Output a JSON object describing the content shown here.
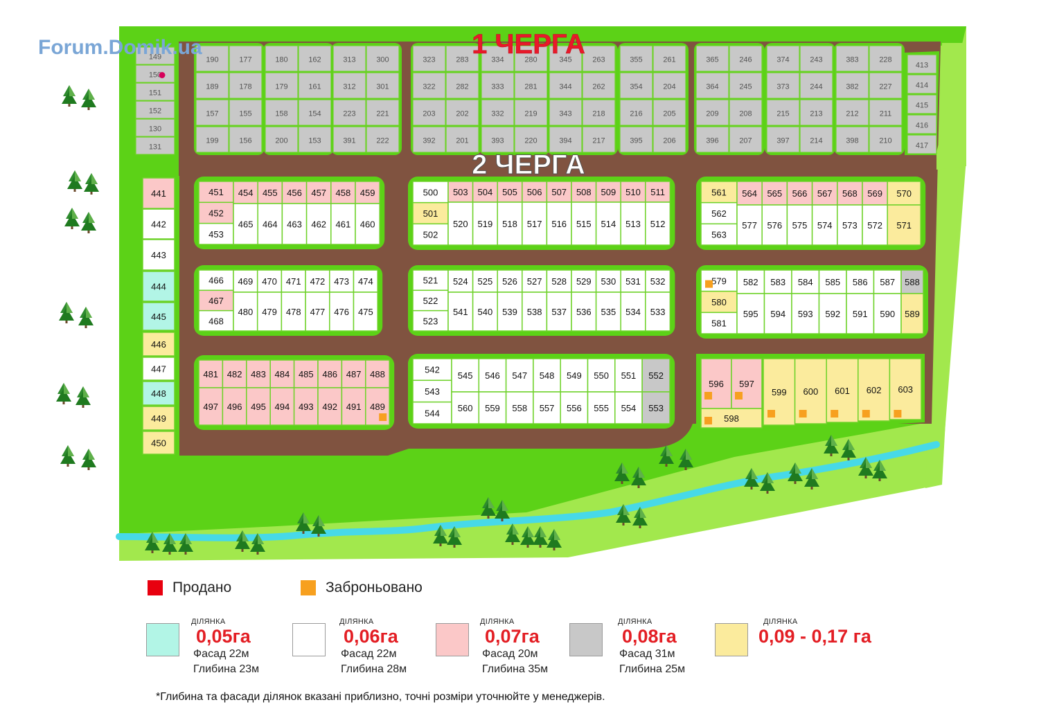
{
  "watermark": "Forum.Domik.ua",
  "phase_labels": {
    "first": "1 ЧЕРГА",
    "second": "2 ЧЕРГА"
  },
  "colors": {
    "grass": "#a2e84d",
    "grass_dark": "#5cd217",
    "road": "#805340",
    "sold": "#e8000f",
    "reserved": "#f7a01f",
    "size_005": "#b2f5e6",
    "size_006": "#ffffff",
    "size_007": "#fbc8c8",
    "size_008": "#c8c8c8",
    "size_009": "#fbeb9d",
    "river": "#47d9e8"
  },
  "legend": {
    "sold": "Продано",
    "reserved": "Заброньовано",
    "sizes": [
      {
        "key": "size_005",
        "caption": "ДІЛЯНКА",
        "area": "0,05га",
        "facade": "Фасад 22м",
        "depth": "Глибина 23м"
      },
      {
        "key": "size_006",
        "caption": "ДІЛЯНКА",
        "area": "0,06га",
        "facade": "Фасад 22м",
        "depth": "Глибина 28м"
      },
      {
        "key": "size_007",
        "caption": "ДІЛЯНКА",
        "area": "0,07га",
        "facade": "Фасад 20м",
        "depth": "Глибина 35м"
      },
      {
        "key": "size_008",
        "caption": "ДІЛЯНКА",
        "area": "0,08га",
        "facade": "Фасад 31м",
        "depth": "Глибина 25м"
      },
      {
        "key": "size_009",
        "caption": "ДІЛЯНКА",
        "area": "0,09 - 0,17 га",
        "facade": "",
        "depth": ""
      }
    ]
  },
  "footnote": "*Глибина та фасади ділянок вказані приблизно, точні розміри уточнюйте у менеджерів.",
  "lots": {
    "phase1": [
      [
        {
          "n": "149",
          "c": "size_008"
        },
        {
          "n": "150",
          "c": "size_008",
          "sold": true
        },
        {
          "n": "151",
          "c": "size_008"
        },
        {
          "n": "152",
          "c": "size_008"
        },
        {
          "n": "130",
          "c": "size_008"
        },
        {
          "n": "131",
          "c": "size_008"
        }
      ],
      [
        [
          "190",
          "177"
        ],
        [
          "189",
          "178"
        ],
        [
          "157",
          "155"
        ],
        [
          "199",
          "156"
        ]
      ],
      [
        [
          "180",
          "162"
        ],
        [
          "179",
          "161"
        ],
        [
          "158",
          "154"
        ],
        [
          "200",
          "153"
        ]
      ],
      [
        [
          "313",
          "300"
        ],
        [
          "312",
          "301"
        ],
        [
          "223",
          "221"
        ],
        [
          "391",
          "222"
        ]
      ],
      [
        [
          "323",
          "283"
        ],
        [
          "322",
          "282"
        ],
        [
          "203",
          "202"
        ],
        [
          "392",
          "201"
        ]
      ],
      [
        [
          "334",
          "280"
        ],
        [
          "333",
          "281"
        ],
        [
          "332",
          "219"
        ],
        [
          "393",
          "220"
        ]
      ],
      [
        [
          "345",
          "263"
        ],
        [
          "344",
          "262"
        ],
        [
          "343",
          "218"
        ],
        [
          "394",
          "217"
        ]
      ],
      [
        [
          "355",
          "261"
        ],
        [
          "354",
          "204"
        ],
        [
          "216",
          "205"
        ],
        [
          "395",
          "206"
        ]
      ],
      [
        [
          "365",
          "246"
        ],
        [
          "364",
          "245"
        ],
        [
          "209",
          "208"
        ],
        [
          "396",
          "207"
        ]
      ],
      [
        [
          "374",
          "243"
        ],
        [
          "373",
          "244"
        ],
        [
          "215",
          "213"
        ],
        [
          "397",
          "214"
        ]
      ],
      [
        [
          "383",
          "228"
        ],
        [
          "382",
          "227"
        ],
        [
          "212",
          "211"
        ],
        [
          "398",
          "210"
        ]
      ],
      [
        "413",
        "414",
        "415",
        "416",
        "417"
      ]
    ],
    "west_column": [
      {
        "n": "441",
        "c": "size_007"
      },
      {
        "n": "442",
        "c": "size_006"
      },
      {
        "n": "443",
        "c": "size_006"
      },
      {
        "n": "444",
        "c": "size_005"
      },
      {
        "n": "445",
        "c": "size_005"
      },
      {
        "n": "446",
        "c": "size_009"
      },
      {
        "n": "447",
        "c": "size_006"
      },
      {
        "n": "448",
        "c": "size_005"
      },
      {
        "n": "449",
        "c": "size_009"
      },
      {
        "n": "450",
        "c": "size_009"
      }
    ],
    "blockA": {
      "left": [
        {
          "n": "451",
          "c": "size_007"
        },
        {
          "n": "452",
          "c": "size_007"
        },
        {
          "n": "453",
          "c": "size_006"
        }
      ],
      "top": [
        "454",
        "455",
        "456",
        "457",
        "458",
        "459"
      ],
      "top_c": "size_007",
      "bottom": [
        "465",
        "464",
        "463",
        "462",
        "461",
        "460"
      ],
      "bottom_c": "size_006"
    },
    "blockB": {
      "left": [
        {
          "n": "500",
          "c": "size_006"
        },
        {
          "n": "501",
          "c": "size_009"
        },
        {
          "n": "502",
          "c": "size_006"
        }
      ],
      "top": [
        "503",
        "504",
        "505",
        "506",
        "507",
        "508",
        "509",
        "510",
        "511"
      ],
      "top_c": "size_007",
      "bottom": [
        "520",
        "519",
        "518",
        "517",
        "516",
        "515",
        "514",
        "513",
        "512"
      ],
      "bottom_c": "size_006"
    },
    "blockC": {
      "left": [
        {
          "n": "561",
          "c": "size_009"
        },
        {
          "n": "562",
          "c": "size_006"
        },
        {
          "n": "563",
          "c": "size_006"
        }
      ],
      "top": [
        "564",
        "565",
        "566",
        "567",
        "568",
        "569"
      ],
      "top_c": "size_007",
      "bottom": [
        "577",
        "576",
        "575",
        "574",
        "573",
        "572"
      ],
      "bottom_c": "size_006",
      "right": [
        {
          "n": "570",
          "c": "size_009"
        },
        {
          "n": "571",
          "c": "size_009"
        }
      ]
    },
    "blockD": {
      "left": [
        {
          "n": "466",
          "c": "size_006"
        },
        {
          "n": "467",
          "c": "size_007"
        },
        {
          "n": "468",
          "c": "size_006"
        }
      ],
      "top": [
        "469",
        "470",
        "471",
        "472",
        "473",
        "474"
      ],
      "top_c": "size_006",
      "bottom": [
        "480",
        "479",
        "478",
        "477",
        "476",
        "475"
      ],
      "bottom_c": "size_006"
    },
    "blockE": {
      "left": [
        {
          "n": "521",
          "c": "size_006"
        },
        {
          "n": "522",
          "c": "size_006"
        },
        {
          "n": "523",
          "c": "size_006"
        }
      ],
      "top": [
        "524",
        "525",
        "526",
        "527",
        "528",
        "529",
        "530",
        "531",
        "532"
      ],
      "top_c": "size_006",
      "bottom": [
        "541",
        "540",
        "539",
        "538",
        "537",
        "536",
        "535",
        "534",
        "533"
      ],
      "bottom_c": "size_006"
    },
    "blockF": {
      "left": [
        {
          "n": "579",
          "c": "size_006",
          "reserved": true
        },
        {
          "n": "580",
          "c": "size_009"
        },
        {
          "n": "581",
          "c": "size_006"
        }
      ],
      "top": [
        "582",
        "583",
        "584",
        "585",
        "586",
        "587"
      ],
      "top_c": "size_006",
      "bottom": [
        "595",
        "594",
        "593",
        "592",
        "591",
        "590"
      ],
      "bottom_c": "size_006",
      "right": [
        {
          "n": "588",
          "c": "size_008"
        },
        {
          "n": "589",
          "c": "size_009"
        }
      ]
    },
    "blockG": {
      "top": [
        "481",
        "482",
        "483",
        "484",
        "485",
        "486",
        "487",
        "488"
      ],
      "bottom": [
        "497",
        "496",
        "495",
        "494",
        "493",
        "492",
        "491",
        "489"
      ],
      "c": "size_007",
      "reserved": [
        "489"
      ]
    },
    "blockH": {
      "left": [
        {
          "n": "542",
          "c": "size_006"
        },
        {
          "n": "543",
          "c": "size_006"
        },
        {
          "n": "544",
          "c": "size_006"
        }
      ],
      "top": [
        "545",
        "546",
        "547",
        "548",
        "549",
        "550",
        "551"
      ],
      "top_c": "size_006",
      "bottom": [
        "560",
        "559",
        "558",
        "557",
        "556",
        "555",
        "554"
      ],
      "bottom_c": "size_006",
      "right": [
        {
          "n": "552",
          "c": "size_008"
        },
        {
          "n": "553",
          "c": "size_008"
        }
      ]
    },
    "blockI": {
      "pink": [
        {
          "n": "596",
          "reserved": true
        },
        {
          "n": "597",
          "reserved": true
        }
      ],
      "bottom_left": {
        "n": "598",
        "reserved": true
      },
      "yellow": [
        {
          "n": "599",
          "reserved": true
        },
        {
          "n": "600",
          "reserved": true
        },
        {
          "n": "601",
          "reserved": true
        },
        {
          "n": "602",
          "reserved": true
        },
        {
          "n": "603",
          "reserved": true
        }
      ]
    }
  }
}
